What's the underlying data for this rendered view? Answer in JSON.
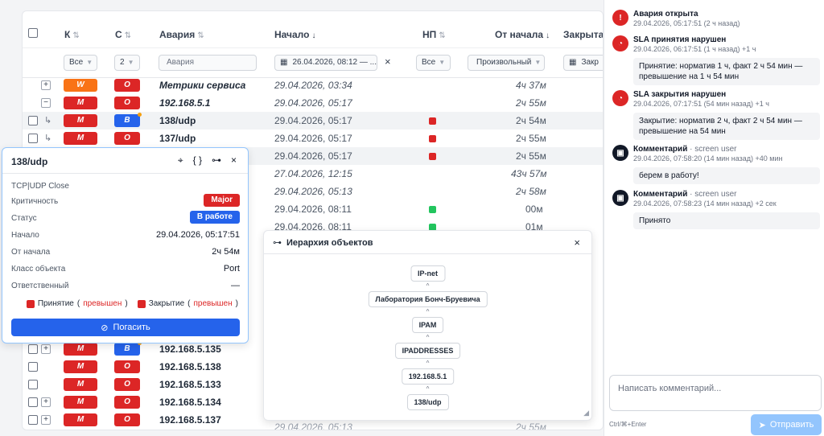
{
  "table": {
    "columns": {
      "k": "К",
      "c": "С",
      "alarm": "Авария",
      "start": "Начало",
      "np": "НП",
      "since": "От начала",
      "close": "Закрыта"
    },
    "sort_neutral": "⇅",
    "sort_desc": "↓",
    "filters": {
      "k": "Все",
      "c": "2",
      "alarm_placeholder": "Авария",
      "start": "26.04.2026, 08:12 — ...",
      "np": "Все",
      "since": "Произвольный",
      "close": "Закр"
    },
    "rows": [
      {
        "plus": "+",
        "k": "W",
        "k_color": "orange",
        "c": "O",
        "c_color": "red",
        "alarm": "Метрики сервиса",
        "style": "src",
        "start": "29.04.2026, 03:34",
        "np": "",
        "since": "4ч 37м"
      },
      {
        "plus": "−",
        "k": "M",
        "k_color": "red",
        "c": "O",
        "c_color": "red",
        "alarm": "192.168.5.1",
        "style": "src",
        "start": "29.04.2026, 05:17",
        "np": "",
        "since": "2ч 55м"
      },
      {
        "child": true,
        "cb": true,
        "k": "M",
        "k_color": "red",
        "c": "B",
        "c_color": "blue",
        "dot": true,
        "alarm": "138/udp",
        "style": "bold",
        "start": "29.04.2026, 05:17",
        "np": "red",
        "since": "2ч 54м",
        "selected": true
      },
      {
        "child": true,
        "cb": true,
        "k": "M",
        "k_color": "red",
        "c": "O",
        "c_color": "red",
        "alarm": "137/udp",
        "style": "bold",
        "start": "29.04.2026, 05:17",
        "np": "red",
        "since": "2ч 55м"
      },
      {
        "start": "29.04.2026, 05:17",
        "np": "red",
        "since": "2ч 55м",
        "selected": true
      },
      {
        "start": "27.04.2026, 12:15",
        "np": "",
        "since": "43ч 57м",
        "italic": true
      },
      {
        "start": "29.04.2026, 05:13",
        "np": "",
        "since": "2ч 58м",
        "italic": true
      },
      {
        "start": "29.04.2026, 08:11",
        "np": "green",
        "since": "00м"
      },
      {
        "start": "29.04.2026, 08:11",
        "np": "green",
        "since": "01м"
      }
    ],
    "bottom_rows": [
      {
        "cb": true,
        "plus": "+",
        "k": "M",
        "c": "B",
        "c_color": "blue",
        "dot": true,
        "alarm": "192.168.5.135"
      },
      {
        "cb": true,
        "k": "M",
        "c": "O",
        "c_color": "red",
        "alarm": "192.168.5.138"
      },
      {
        "cb": true,
        "k": "M",
        "c": "O",
        "c_color": "red",
        "alarm": "192.168.5.133"
      },
      {
        "cb": true,
        "plus": "+",
        "k": "M",
        "c": "O",
        "c_color": "red",
        "alarm": "192.168.5.134"
      },
      {
        "cb": true,
        "plus": "+",
        "k": "M",
        "c": "O",
        "c_color": "red",
        "alarm": "192.168.5.137"
      }
    ],
    "partial_row_text": "29.04.2026, 05:13",
    "partial_row_since": "2ч 55м"
  },
  "detail": {
    "title": "138/udp",
    "subtitle": "TCP|UDP Close",
    "fields": {
      "criticality_label": "Критичность",
      "criticality_value": "Major",
      "status_label": "Статус",
      "status_value": "В работе",
      "start_label": "Начало",
      "start_value": "29.04.2026, 05:17:51",
      "since_label": "От начала",
      "since_value": "2ч 54м",
      "class_label": "Класс объекта",
      "class_value": "Port",
      "owner_label": "Ответственный",
      "owner_value": "—"
    },
    "legend": {
      "accept": "Принятие",
      "close": "Закрытие",
      "open_paren": "(",
      "close_paren": ")",
      "exceeded": "превышен"
    },
    "close_button": "Погасить"
  },
  "hierarchy": {
    "title": "Иерархия объектов",
    "nodes": [
      "IP-net",
      "Лаборатория Бонч-Бруевича",
      "IPAM",
      "IPADDRESSES",
      "192.168.5.1",
      "138/udp"
    ],
    "caret": "^"
  },
  "events": [
    {
      "icon": "!",
      "icon_color": "red",
      "title": "Авария открыта",
      "meta": "29.04.2026, 05:17:51  (2 ч назад)"
    },
    {
      "icon": "◔",
      "icon_color": "red",
      "title": "SLA принятия нарушен",
      "meta": "29.04.2026, 06:17:51  (1 ч назад)  +1 ч",
      "note": "Принятие: норматив 1 ч, факт 2 ч 54 мин — превышение на 1 ч 54 мин"
    },
    {
      "icon": "◔",
      "icon_color": "red",
      "title": "SLA закрытия нарушен",
      "meta": "29.04.2026, 07:17:51  (54 мин назад)  +1 ч",
      "note": "Закрытие: норматив 2 ч, факт 2 ч 54 мин — превышение на 54 мин"
    },
    {
      "icon": "▣",
      "icon_color": "dark",
      "title": "Комментарий",
      "who": " · screen user",
      "meta": "29.04.2026, 07:58:20  (14 мин назад)  +40 мин",
      "note": "берем в работу!"
    },
    {
      "icon": "▣",
      "icon_color": "dark",
      "title": "Комментарий",
      "who": " · screen user",
      "meta": "29.04.2026, 07:58:23  (14 мин назад)  +2 сек",
      "note": "Принято"
    }
  ],
  "comment": {
    "placeholder": "Написать комментарий...",
    "hint": "Ctrl/⌘+Enter",
    "send": "Отправить"
  },
  "colors": {
    "red": "#dc2626",
    "orange": "#f97316",
    "blue": "#2563eb",
    "green": "#22c55e"
  },
  "icons": {
    "close": "×",
    "calendar": "▦",
    "hierarchy": "⊶",
    "braces": "{ }",
    "pin_off": "⌖",
    "bell_off": "⊘",
    "send": "➤",
    "reply": "↳"
  }
}
